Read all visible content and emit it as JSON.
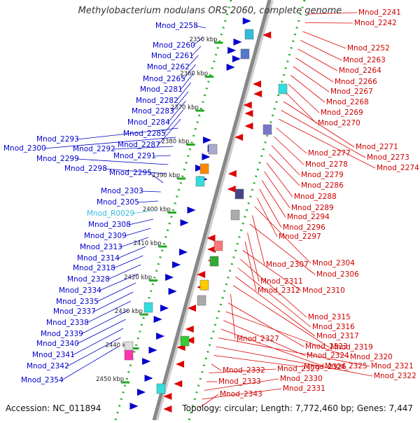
{
  "title": "Methylobacterium nodulans ORS 2060, complete genome",
  "accession_text": "Accession: NC_011894",
  "summary_text": "Topology: circular; Length: 7,772,460 bp; Genes: 7,447",
  "colors": {
    "forward_gene": "#0000cc",
    "reverse_gene": "#dd0000",
    "rna_gene": "#33bbdd",
    "backbone": "#888888",
    "tick": "#22aa22"
  },
  "scale_marks": [
    "2350 kbp",
    "2360 kbp",
    "2370 kbp",
    "2380 kbp",
    "2390 kbp",
    "2400 kbp",
    "2410 kbp",
    "2420 kbp",
    "2430 kbp",
    "2440 kbp",
    "2450 kbp"
  ],
  "left_labels": [
    {
      "id": "Mnod_2258",
      "text": "Mnod_2258"
    },
    {
      "id": "Mnod_2260",
      "text": "Mnod_2260"
    },
    {
      "id": "Mnod_2261",
      "text": "Mnod_2261"
    },
    {
      "id": "Mnod_2262",
      "text": "Mnod_2262"
    },
    {
      "id": "Mnod_2265",
      "text": "Mnod_2265"
    },
    {
      "id": "Mnod_2281",
      "text": "Mnod_2281"
    },
    {
      "id": "Mnod_2282",
      "text": "Mnod_2282"
    },
    {
      "id": "Mnod_2283",
      "text": "Mnod_2283"
    },
    {
      "id": "Mnod_2284",
      "text": "Mnod_2284"
    },
    {
      "id": "Mnod_2285",
      "text": "Mnod_2285"
    },
    {
      "id": "Mnod_2287",
      "text": "Mnod_2287"
    },
    {
      "id": "Mnod_2293",
      "text": "Mnod_2293"
    },
    {
      "id": "Mnod_2300",
      "text": "Mnod_2300"
    },
    {
      "id": "Mnod_2292",
      "text": "Mnod_2292"
    },
    {
      "id": "Mnod_2291",
      "text": "Mnod_2291"
    },
    {
      "id": "Mnod_2299",
      "text": "Mnod_2299"
    },
    {
      "id": "Mnod_2298",
      "text": "Mnod_2298"
    },
    {
      "id": "Mnod_2295",
      "text": "Mnod_2295"
    },
    {
      "id": "Mnod_2303",
      "text": "Mnod_2303"
    },
    {
      "id": "Mnod_2305",
      "text": "Mnod_2305"
    },
    {
      "id": "Mnod_R0029",
      "text": "Mnod_R0029",
      "rna": true
    },
    {
      "id": "Mnod_2308",
      "text": "Mnod_2308"
    },
    {
      "id": "Mnod_2309",
      "text": "Mnod_2309"
    },
    {
      "id": "Mnod_2313",
      "text": "Mnod_2313"
    },
    {
      "id": "Mnod_2314",
      "text": "Mnod_2314"
    },
    {
      "id": "Mnod_2318",
      "text": "Mnod_2318"
    },
    {
      "id": "Mnod_2328",
      "text": "Mnod_2328"
    },
    {
      "id": "Mnod_2334",
      "text": "Mnod_2334"
    },
    {
      "id": "Mnod_2335",
      "text": "Mnod_2335"
    },
    {
      "id": "Mnod_2337",
      "text": "Mnod_2337"
    },
    {
      "id": "Mnod_2338",
      "text": "Mnod_2338"
    },
    {
      "id": "Mnod_2339",
      "text": "Mnod_2339"
    },
    {
      "id": "Mnod_2340",
      "text": "Mnod_2340"
    },
    {
      "id": "Mnod_2341",
      "text": "Mnod_2341"
    },
    {
      "id": "Mnod_2342",
      "text": "Mnod_2342"
    },
    {
      "id": "Mnod_2354",
      "text": "Mnod_2354"
    }
  ],
  "right_labels": [
    {
      "id": "Mnod_2241",
      "text": "Mnod_2241"
    },
    {
      "id": "Mnod_2242",
      "text": "Mnod_2242"
    },
    {
      "id": "Mnod_2252",
      "text": "Mnod_2252"
    },
    {
      "id": "Mnod_2263",
      "text": "Mnod_2263"
    },
    {
      "id": "Mnod_2264",
      "text": "Mnod_2264"
    },
    {
      "id": "Mnod_2266",
      "text": "Mnod_2266"
    },
    {
      "id": "Mnod_2267",
      "text": "Mnod_2267"
    },
    {
      "id": "Mnod_2268",
      "text": "Mnod_2268"
    },
    {
      "id": "Mnod_2269",
      "text": "Mnod_2269"
    },
    {
      "id": "Mnod_2270",
      "text": "Mnod_2270"
    },
    {
      "id": "Mnod_2271",
      "text": "Mnod_2271"
    },
    {
      "id": "Mnod_2273",
      "text": "Mnod_2273"
    },
    {
      "id": "Mnod_2274",
      "text": "Mnod_2274"
    },
    {
      "id": "Mnod_2277",
      "text": "Mnod_2277"
    },
    {
      "id": "Mnod_2278",
      "text": "Mnod_2278"
    },
    {
      "id": "Mnod_2279",
      "text": "Mnod_2279"
    },
    {
      "id": "Mnod_2286",
      "text": "Mnod_2286"
    },
    {
      "id": "Mnod_2288",
      "text": "Mnod_2288"
    },
    {
      "id": "Mnod_2289",
      "text": "Mnod_2289"
    },
    {
      "id": "Mnod_2294",
      "text": "Mnod_2294"
    },
    {
      "id": "Mnod_2296",
      "text": "Mnod_2296"
    },
    {
      "id": "Mnod_2297",
      "text": "Mnod_2297"
    },
    {
      "id": "Mnod_2304",
      "text": "Mnod_2304"
    },
    {
      "id": "Mnod_2307",
      "text": "Mnod_2307"
    },
    {
      "id": "Mnod_2306",
      "text": "Mnod_2306"
    },
    {
      "id": "Mnod_2311",
      "text": "Mnod_2311"
    },
    {
      "id": "Mnod_2312",
      "text": "Mnod_2312"
    },
    {
      "id": "Mnod_2310",
      "text": "Mnod_2310"
    },
    {
      "id": "Mnod_2315",
      "text": "Mnod_2315"
    },
    {
      "id": "Mnod_2316",
      "text": "Mnod_2316"
    },
    {
      "id": "Mnod_2317",
      "text": "Mnod_2317"
    },
    {
      "id": "Mnod_2319",
      "text": "Mnod_2319"
    },
    {
      "id": "Mnod_2327",
      "text": "Mnod_2327"
    },
    {
      "id": "Mnod_2323",
      "text": "Mnod_2323"
    },
    {
      "id": "Mnod_2320",
      "text": "Mnod_2320"
    },
    {
      "id": "Mnod_2324",
      "text": "Mnod_2324"
    },
    {
      "id": "Mnod_2325",
      "text": "Mnod_2325"
    },
    {
      "id": "Mnod_2321",
      "text": "Mnod_2321"
    },
    {
      "id": "Mnod_2322",
      "text": "Mnod_2322"
    },
    {
      "id": "Mnod_2326",
      "text": "Mnod_2326"
    },
    {
      "id": "Mnod_2332",
      "text": "Mnod_2332"
    },
    {
      "id": "Mnod_2329",
      "text": "Mnod_2329"
    },
    {
      "id": "Mnod_2333",
      "text": "Mnod_2333"
    },
    {
      "id": "Mnod_2330",
      "text": "Mnod_2330"
    },
    {
      "id": "Mnod_2331",
      "text": "Mnod_2331"
    },
    {
      "id": "Mnod_2343",
      "text": "Mnod_2343"
    }
  ]
}
